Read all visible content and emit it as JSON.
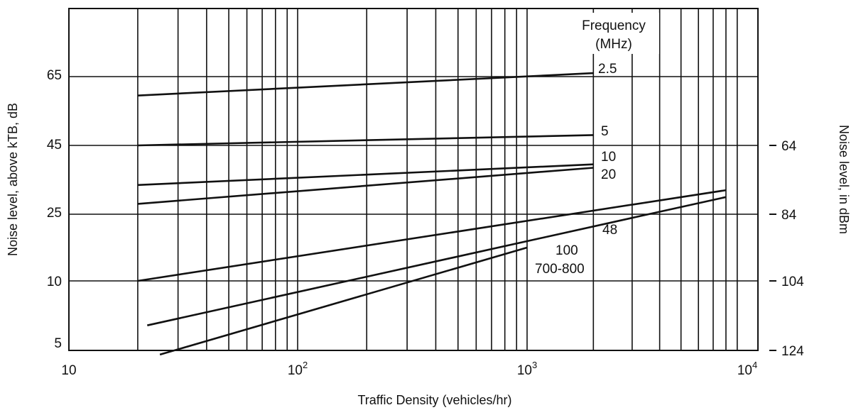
{
  "chart_data": {
    "type": "line",
    "x_scale": "log",
    "xlim": [
      10,
      10000
    ],
    "xlabel": "Traffic Density (vehicles/hr)",
    "ylabel_left": "Noise level, above kTB, dB",
    "ylabel_right": "Noise level, in dBm",
    "legend_title": [
      "Frequency",
      "(MHz)"
    ],
    "x_ticks": [
      {
        "value": 10,
        "base": "10",
        "exp": ""
      },
      {
        "value": 100,
        "base": "10",
        "exp": "2"
      },
      {
        "value": 1000,
        "base": "10",
        "exp": "3"
      },
      {
        "value": 10000,
        "base": "10",
        "exp": "4"
      }
    ],
    "y_ticks_left": [
      "65",
      "45",
      "25",
      "10",
      "5"
    ],
    "y_ticks_right": [
      "64",
      "84",
      "104",
      "124"
    ],
    "series": [
      {
        "name": "2.5",
        "x": [
          20,
          2000
        ],
        "y": [
          59.5,
          66
        ]
      },
      {
        "name": "5",
        "x": [
          20,
          2000
        ],
        "y": [
          45,
          48
        ]
      },
      {
        "name": "10",
        "x": [
          20,
          2000
        ],
        "y": [
          33.5,
          39.5
        ]
      },
      {
        "name": "20",
        "x": [
          20,
          2000
        ],
        "y": [
          28,
          38.5
        ]
      },
      {
        "name": "48",
        "x": [
          20,
          8000
        ],
        "y": [
          10,
          32
        ]
      },
      {
        "name": "100",
        "x": [
          22,
          8000
        ],
        "y": [
          6.8,
          30
        ]
      },
      {
        "name": "700-800",
        "x": [
          25,
          1000
        ],
        "y": [
          4.7,
          17.5
        ]
      }
    ],
    "grid": true
  }
}
